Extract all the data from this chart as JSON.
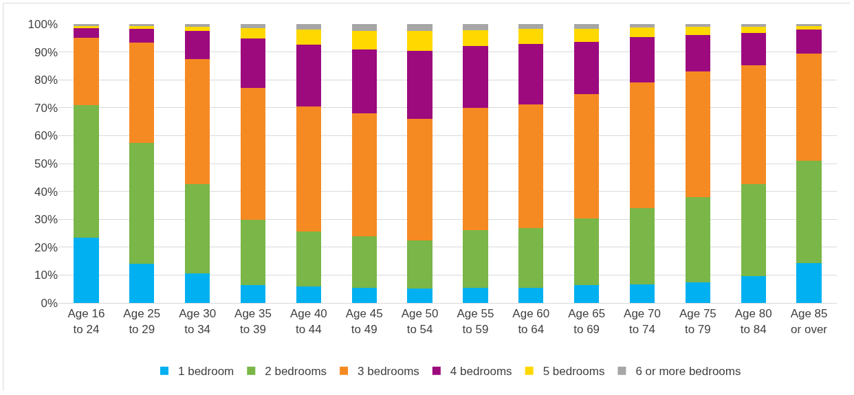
{
  "chart_data": {
    "type": "bar",
    "stacked": true,
    "categories": [
      "Age 16\nto 24",
      "Age 25\nto 29",
      "Age 30\nto 34",
      "Age 35\nto 39",
      "Age 40\nto 44",
      "Age 45\nto 49",
      "Age 50\nto 54",
      "Age 55\nto 59",
      "Age 60\nto 64",
      "Age 65\nto 69",
      "Age 70\nto 74",
      "Age 75\nto 79",
      "Age 80\nto 84",
      "Age 85\nor over"
    ],
    "series": [
      {
        "name": "1 bedroom",
        "color": "#00b0f0",
        "values": [
          23.5,
          14,
          10.5,
          6.5,
          6,
          5.3,
          5.2,
          5.5,
          5.5,
          6.3,
          6.7,
          7.5,
          9.7,
          14.3
        ]
      },
      {
        "name": "2 bedrooms",
        "color": "#7ab648",
        "values": [
          47.5,
          43.3,
          32.2,
          23.3,
          19.5,
          18.7,
          17.3,
          20.5,
          21.3,
          24,
          27.3,
          30.5,
          32.8,
          36.7
        ]
      },
      {
        "name": "3 bedrooms",
        "color": "#f58a23",
        "values": [
          24,
          36,
          44.8,
          47.2,
          45,
          44,
          43.5,
          44,
          44.5,
          44.7,
          45,
          45,
          42.8,
          38.5
        ]
      },
      {
        "name": "4 bedrooms",
        "color": "#9c0a7e",
        "values": [
          3.5,
          5,
          10,
          17.8,
          22.2,
          23,
          24.5,
          22,
          21.5,
          18.7,
          16.3,
          13,
          11.5,
          8.5
        ]
      },
      {
        "name": "5 bedrooms",
        "color": "#ffd800",
        "values": [
          0.8,
          1,
          1.5,
          3.7,
          5.3,
          6.5,
          7,
          5.8,
          5.4,
          4.5,
          3.5,
          3,
          2.2,
          1.3
        ]
      },
      {
        "name": "6 or more bedrooms",
        "color": "#a6a6a6",
        "values": [
          0.7,
          0.7,
          1,
          1.5,
          2,
          2.5,
          2.5,
          2.2,
          1.8,
          1.8,
          1.2,
          1,
          1,
          0.7
        ]
      }
    ],
    "ylim": [
      0,
      100
    ],
    "yticks": [
      {
        "value": 0,
        "label": "0%"
      },
      {
        "value": 10,
        "label": "10%"
      },
      {
        "value": 20,
        "label": "20%"
      },
      {
        "value": 30,
        "label": "30%"
      },
      {
        "value": 40,
        "label": "40%"
      },
      {
        "value": 50,
        "label": "50%"
      },
      {
        "value": 60,
        "label": "60%"
      },
      {
        "value": 70,
        "label": "70%"
      },
      {
        "value": 80,
        "label": "80%"
      },
      {
        "value": 90,
        "label": "90%"
      },
      {
        "value": 100,
        "label": "100%"
      }
    ],
    "grid": "y",
    "legend": "bottom"
  }
}
